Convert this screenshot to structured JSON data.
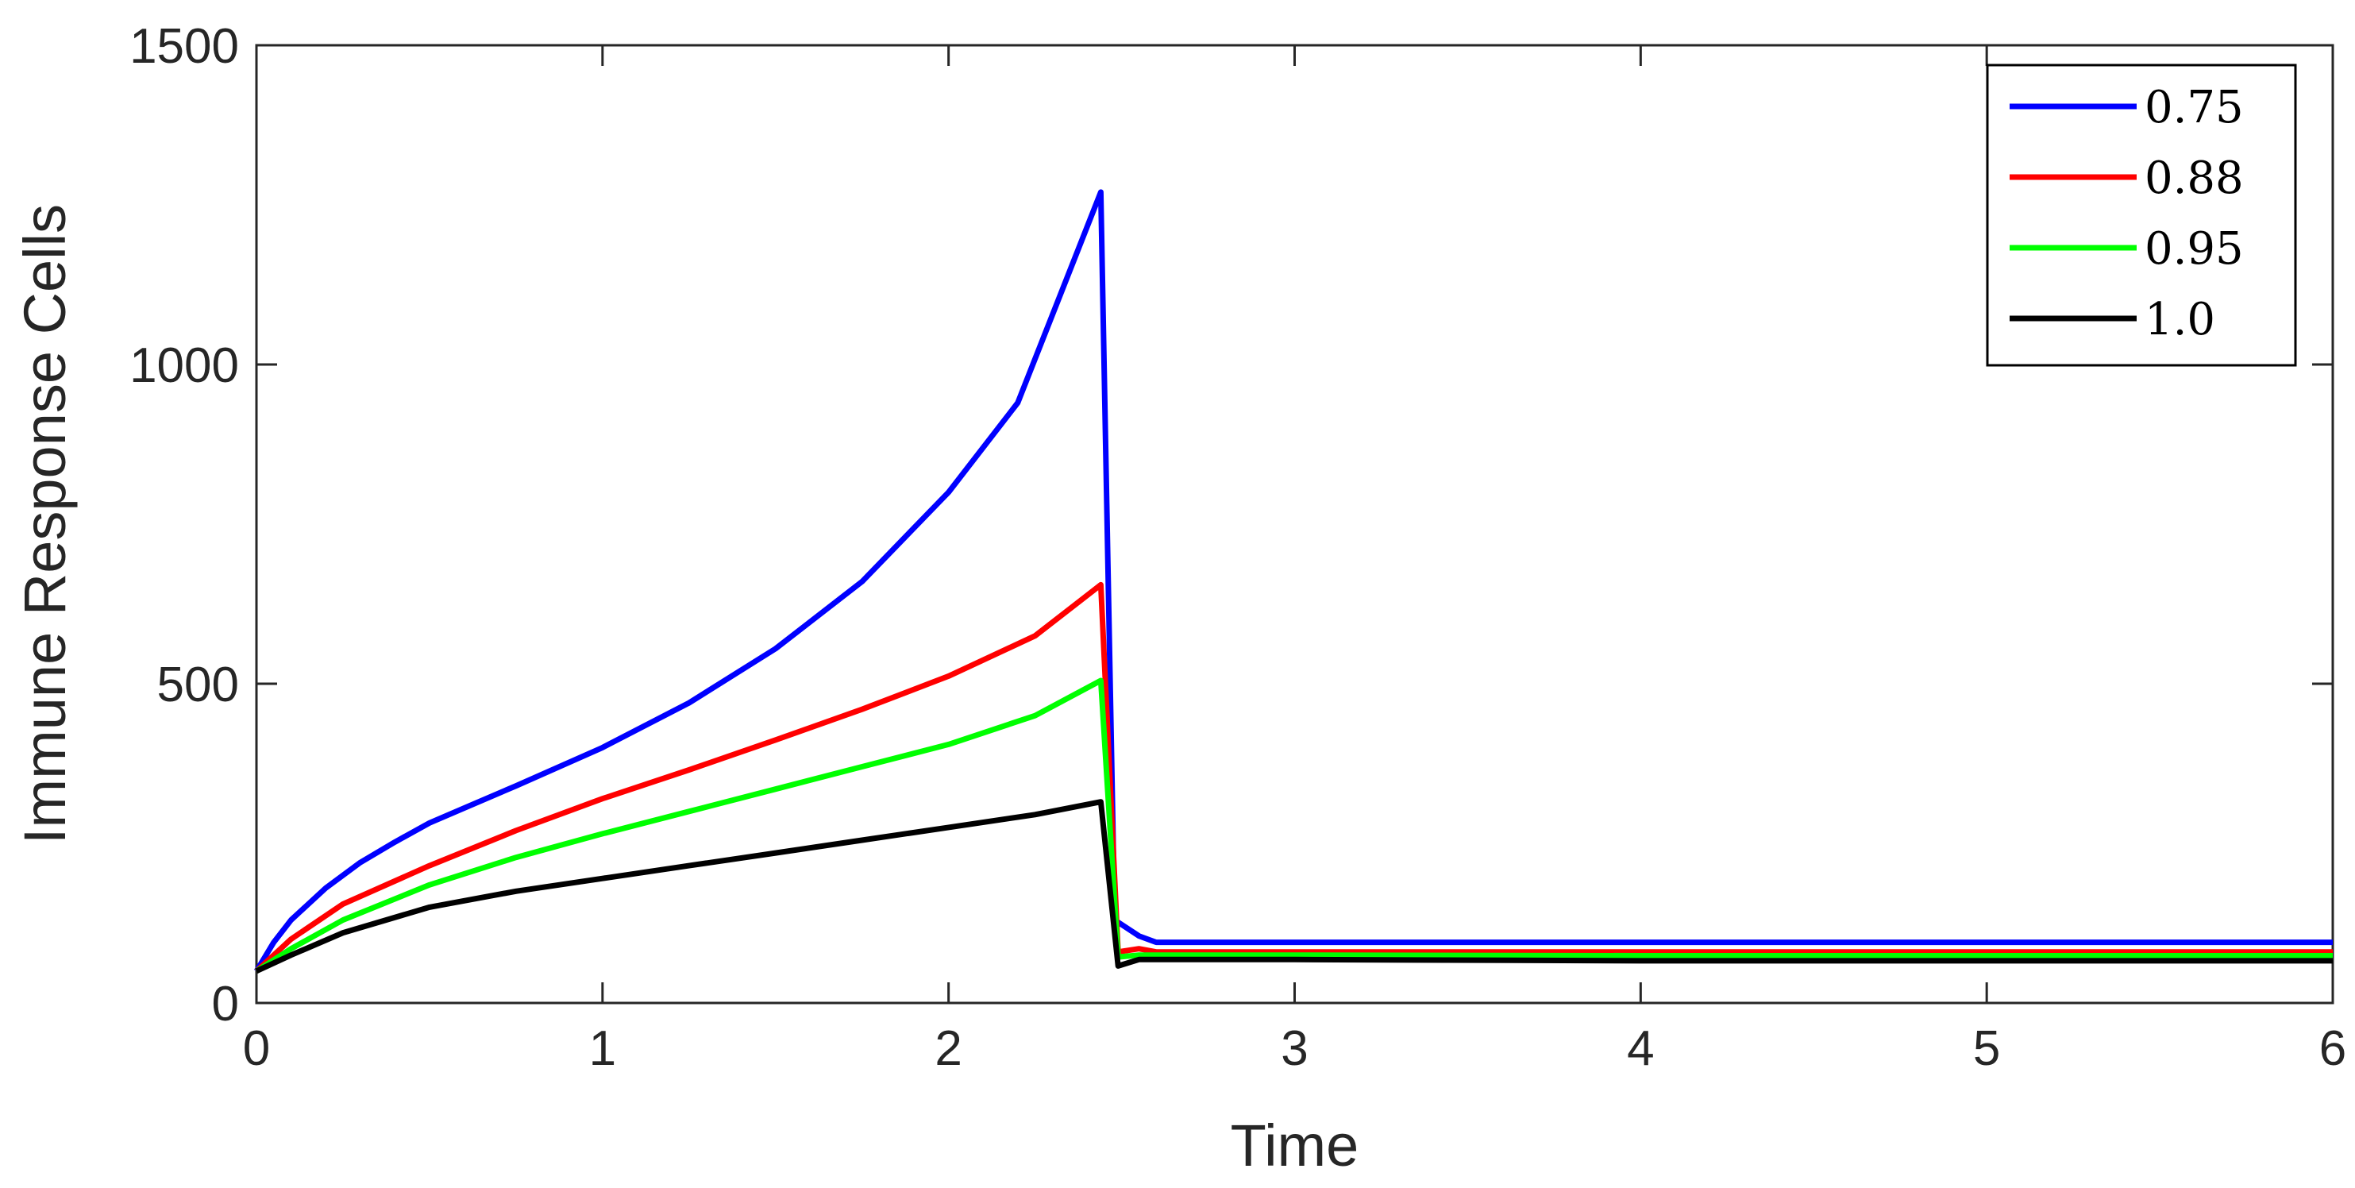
{
  "chart_data": {
    "type": "line",
    "title": "",
    "xlabel": "Time",
    "ylabel": "Immune Response Cells",
    "xlim": [
      0,
      6
    ],
    "ylim": [
      0,
      1500
    ],
    "xticks": [
      0,
      1,
      2,
      3,
      4,
      5,
      6
    ],
    "yticks": [
      0,
      500,
      1000,
      1500
    ],
    "xtick_labels": [
      "0",
      "1",
      "2",
      "3",
      "4",
      "5",
      "6"
    ],
    "ytick_labels": [
      "0",
      "500",
      "1000",
      "1500"
    ],
    "grid": false,
    "legend_position": "top-right",
    "series": [
      {
        "name": "0.75",
        "color": "#0000ff",
        "x": [
          0,
          0.05,
          0.1,
          0.2,
          0.3,
          0.4,
          0.5,
          0.75,
          1.0,
          1.25,
          1.5,
          1.75,
          2.0,
          2.2,
          2.44,
          2.48,
          2.55,
          2.6,
          2.65,
          3.0,
          4.0,
          5.0,
          6.0
        ],
        "y": [
          50,
          95,
          130,
          180,
          220,
          252,
          282,
          340,
          400,
          470,
          555,
          660,
          800,
          940,
          1270,
          130,
          105,
          95,
          95,
          95,
          95,
          95,
          95
        ]
      },
      {
        "name": "0.88",
        "color": "#ff0000",
        "x": [
          0,
          0.1,
          0.25,
          0.5,
          0.75,
          1.0,
          1.25,
          1.5,
          1.75,
          2.0,
          2.25,
          2.44,
          2.49,
          2.55,
          2.6,
          3.0,
          4.0,
          5.0,
          6.0
        ],
        "y": [
          50,
          100,
          155,
          215,
          270,
          320,
          365,
          412,
          460,
          512,
          575,
          655,
          80,
          85,
          80,
          80,
          80,
          80,
          80
        ]
      },
      {
        "name": "0.95",
        "color": "#00ff00",
        "x": [
          0,
          0.1,
          0.25,
          0.5,
          0.75,
          1.0,
          1.25,
          1.5,
          1.75,
          2.0,
          2.25,
          2.44,
          2.49,
          2.55,
          3.0,
          4.0,
          5.0,
          6.0
        ],
        "y": [
          50,
          85,
          130,
          185,
          228,
          265,
          300,
          335,
          370,
          405,
          450,
          505,
          72,
          75,
          75,
          74,
          74,
          74
        ]
      },
      {
        "name": "1.0",
        "color": "#000000",
        "x": [
          0,
          0.1,
          0.25,
          0.5,
          0.75,
          1.0,
          1.25,
          1.5,
          1.75,
          2.0,
          2.25,
          2.44,
          2.49,
          2.55,
          3.0,
          4.0,
          5.0,
          6.0
        ],
        "y": [
          50,
          75,
          110,
          150,
          175,
          195,
          215,
          235,
          255,
          275,
          295,
          315,
          58,
          68,
          68,
          66,
          66,
          66
        ]
      }
    ]
  }
}
